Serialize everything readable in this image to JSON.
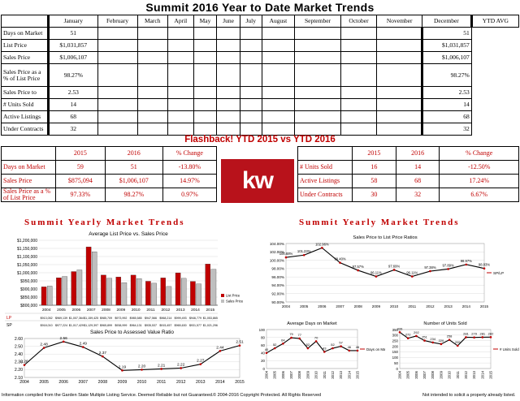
{
  "page": {
    "title": "Summit 2016 Year to Date Market Trends"
  },
  "monthly_table": {
    "columns": [
      "",
      "January",
      "February",
      "March",
      "April",
      "May",
      "June",
      "July",
      "August",
      "September",
      "October",
      "November",
      "December",
      "YTD AVG"
    ],
    "rows": [
      {
        "label": "Days on Market",
        "jan": "51",
        "avg": "51"
      },
      {
        "label": "List Price",
        "jan": "$1,031,857",
        "avg": "$1,031,857"
      },
      {
        "label": "Sales Price",
        "jan": "$1,006,107",
        "avg": "$1,006,107"
      },
      {
        "label": "Sales Price as a % of List Price",
        "jan": "98.27%",
        "avg": "98.27%"
      },
      {
        "label": "Sales Price to",
        "jan": "2.53",
        "avg": "2.53"
      },
      {
        "label": "# Units Sold",
        "jan": "14",
        "avg": "14"
      },
      {
        "label": "Active Listings",
        "jan": "68",
        "avg": "68"
      },
      {
        "label": "Under Contracts",
        "jan": "32",
        "avg": "32"
      }
    ]
  },
  "flashback": {
    "title": "Flashback!  YTD 2015 vs YTD 2016",
    "headers": [
      "",
      "2015",
      "2016",
      "% Change"
    ],
    "left_rows": [
      {
        "label": "Days on Market",
        "y2015": "59",
        "y2016": "51",
        "change": "-13.80%"
      },
      {
        "label": "Sales Price",
        "y2015": "$875,094",
        "y2016": "$1,006,107",
        "change": "14.97%"
      },
      {
        "label": "Sales Price as a % of List Price",
        "y2015": "97.33%",
        "y2016": "98.27%",
        "change": "0.97%"
      }
    ],
    "right_rows": [
      {
        "label": "# Units Sold",
        "y2015": "16",
        "y2016": "14",
        "change": "-12.50%"
      },
      {
        "label": "Active Listings",
        "y2015": "58",
        "y2016": "68",
        "change": "17.24%"
      },
      {
        "label": "Under Contracts",
        "y2015": "30",
        "y2016": "32",
        "change": "6.67%"
      }
    ],
    "logo_text": "kw"
  },
  "sections": {
    "left_title": "Summit Yearly Market Trends",
    "right_title": "Summit Yearly Market Trends"
  },
  "chart_data": [
    {
      "type": "bar",
      "title": "Average List Price vs. Sales Price",
      "categories": [
        "2004",
        "2005",
        "2006",
        "2007",
        "2008",
        "2009",
        "2010",
        "2011",
        "2012",
        "2013",
        "2014",
        "2015"
      ],
      "series": [
        {
          "name": "List Price",
          "color": "#c00000",
          "values": [
            913052,
            969139,
            1007364,
            1159425,
            985709,
            973992,
            985585,
            947566,
            968214,
            999493,
            946779,
            1053865
          ]
        },
        {
          "name": "Sales Price",
          "color": "#bfbfbf",
          "values": [
            918010,
            977224,
            1017429,
            1129397,
            965899,
            938999,
            964131,
            935537,
            915457,
            965630,
            931577,
            1021296
          ]
        }
      ],
      "ylim": [
        800000,
        1200000
      ],
      "yticks": [
        "$800,000",
        "$850,000",
        "$900,000",
        "$950,000",
        "$1,000,000",
        "$1,050,000",
        "$1,100,000",
        "$1,150,000",
        "$1,200,000"
      ],
      "table_rows": [
        {
          "key": "LP",
          "cells": [
            "$913,052",
            "$969,139",
            "$1,007,364",
            "$1,159,425",
            "$985,709",
            "$973,992",
            "$985,585",
            "$947,566",
            "$968,214",
            "$999,493",
            "$946,779",
            "$1,053,865"
          ]
        },
        {
          "key": "SP",
          "cells": [
            "$918,010",
            "$977,224",
            "$1,017,429",
            "$1,129,397",
            "$965,899",
            "$938,999",
            "$964,131",
            "$935,537",
            "$915,457",
            "$965,630",
            "$931,577",
            "$1,021,296"
          ]
        }
      ]
    },
    {
      "type": "line",
      "title": "Sales Price to Assessed Value Ratio",
      "x": [
        "2004",
        "2005",
        "2006",
        "2007",
        "2008",
        "2009",
        "2010",
        "2011",
        "2012",
        "2013",
        "2014",
        "2015"
      ],
      "values": [
        2.26,
        2.48,
        2.56,
        2.49,
        2.37,
        2.19,
        2.2,
        2.21,
        2.22,
        2.27,
        2.44,
        2.51
      ],
      "labels": [
        "2.26",
        "2.48",
        "2.56",
        "2.49",
        "2.37",
        "2.19",
        "2.20",
        "2.21",
        "2.22",
        "2.27",
        "2.44",
        "2.51"
      ],
      "ylim": [
        2.1,
        2.6
      ],
      "yticks": [
        "2.10",
        "2.20",
        "2.30",
        "2.40",
        "2.50",
        "2.60"
      ],
      "color": "#c00000"
    },
    {
      "type": "line",
      "title": "Sales Price to List Price Ratios",
      "x": [
        "2004",
        "2005",
        "2006",
        "2007",
        "2008",
        "2009",
        "2010",
        "2011",
        "2012",
        "2013",
        "2014",
        "2015"
      ],
      "values": [
        100.68,
        101.23,
        102.96,
        99.4,
        97.57,
        96.11,
        97.69,
        96.11,
        97.38,
        97.89,
        98.97,
        98.03
      ],
      "labels": [
        "100.68%",
        "101.23%",
        "102.96%",
        "99.40%",
        "97.57%",
        "96.11%",
        "97.69%",
        "96.11%",
        "97.38%",
        "97.89%",
        "98.97%",
        "98.03%"
      ],
      "ylim": [
        90,
        104
      ],
      "yticks": [
        "90.00%",
        "92.00%",
        "94.00%",
        "96.00%",
        "98.00%",
        "100.00%",
        "102.00%",
        "104.00%"
      ],
      "legend": "SP/LP",
      "color": "#c00000"
    },
    {
      "type": "line",
      "title": "Average Days on Market",
      "x": [
        "2004",
        "2005",
        "2006",
        "2007",
        "2008",
        "2009",
        "2010",
        "2011",
        "2012",
        "2013",
        "2014",
        "2015"
      ],
      "values": [
        40,
        52,
        64,
        79,
        77,
        52,
        70,
        43,
        52,
        57,
        46,
        46
      ],
      "labels": [
        "40",
        "52",
        "64",
        "79",
        "77",
        "52",
        "70",
        "43",
        "52",
        "57",
        "46",
        "46"
      ],
      "ylim": [
        0,
        100
      ],
      "yticks": [
        "0",
        "20",
        "40",
        "60",
        "80",
        "100"
      ],
      "legend": "Days on Market",
      "color": "#c00000"
    },
    {
      "type": "line",
      "title": "Number of Units Sold",
      "x": [
        "2004",
        "2005",
        "2006",
        "2007",
        "2008",
        "2009",
        "2010",
        "2011",
        "2012",
        "2013",
        "2014",
        "2015"
      ],
      "values": [
        326,
        272,
        292,
        251,
        234,
        220,
        258,
        205,
        281,
        279,
        281,
        282
      ],
      "labels": [
        "326",
        "272",
        "292",
        "251",
        "234",
        "220",
        "258",
        "205",
        "281",
        "279",
        "281",
        "282"
      ],
      "ylim": [
        0,
        350
      ],
      "yticks": [
        "0",
        "50",
        "100",
        "150",
        "200",
        "250",
        "300",
        "350"
      ],
      "legend": "# Units Sold",
      "color": "#c00000"
    }
  ],
  "footer": {
    "left": "Information compiled from the Garden State Multiple Listing Service.  Deemed Reliable but not Guaranteed.",
    "center": "© 2004-2016 Copyright Protected.  All Rights Reserved",
    "right": "Not intended to solicit a property already listed."
  }
}
